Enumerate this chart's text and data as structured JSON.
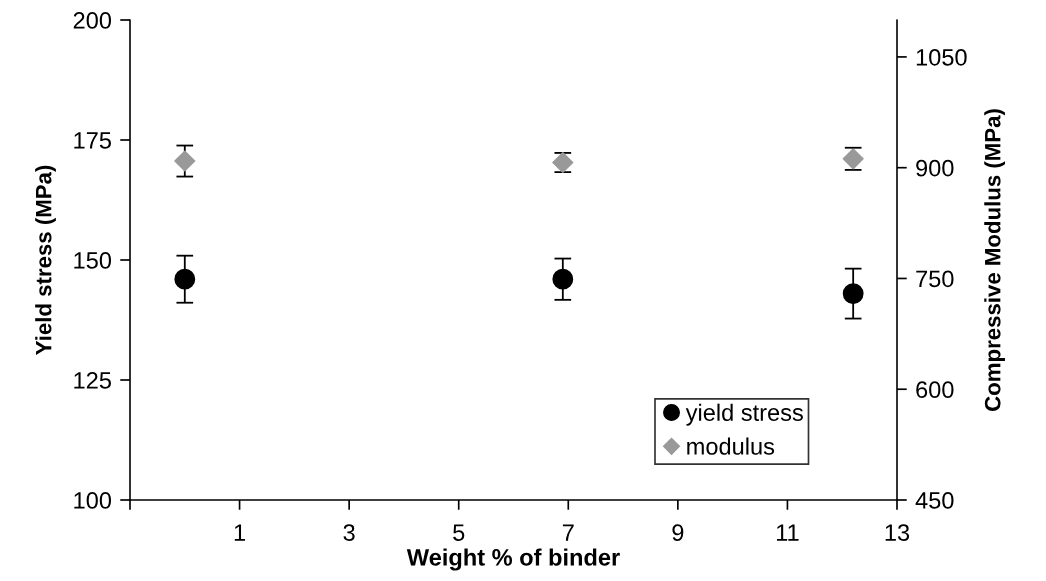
{
  "chart_data": {
    "type": "scatter",
    "xlabel": "Weight % of binder",
    "ylabel": "Yield stress (MPa)",
    "y2label": "Compressive Modulus (MPa)",
    "x": [
      0,
      6.9,
      12.2
    ],
    "series": [
      {
        "name": "yield stress",
        "color": "#000000",
        "marker": "circle",
        "values": [
          146,
          146,
          143
        ],
        "errors": [
          4.9,
          4.3,
          5.2
        ]
      },
      {
        "name": "modulus",
        "color": "#999999",
        "marker": "diamond",
        "axis": "y2",
        "values": [
          909,
          907,
          912
        ],
        "errors": [
          21,
          13,
          15
        ]
      }
    ],
    "xlim": [
      -1,
      13
    ],
    "xticks": [
      {
        "value": -1,
        "label": null
      },
      1,
      3,
      5,
      7,
      9,
      11,
      13
    ],
    "ylim": [
      100,
      200
    ],
    "yticks": [
      100,
      125,
      150,
      175,
      200
    ],
    "y2lim": [
      450,
      1100
    ],
    "y2ticks": [
      450,
      600,
      750,
      900,
      1050
    ],
    "grid": false,
    "legend": "bottom right"
  }
}
